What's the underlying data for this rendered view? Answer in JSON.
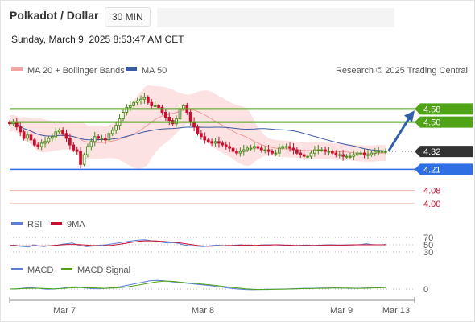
{
  "header": {
    "title": "Polkadot / Dollar",
    "timeframe": "30 MIN",
    "datetime": "Sunday, March 9, 2025 8:53:47 AM CET"
  },
  "legend": {
    "ma20": "MA 20 + Bollinger Bands",
    "ma50": "MA 50",
    "credit": "Research © 2025 Trading Central"
  },
  "colors": {
    "up_candle": "#4b8a1a",
    "down_candle": "#c8102e",
    "resistance": "#4ea414",
    "support": "#2f6fe4",
    "lower_target": "#c8102e",
    "current_price": "#333333",
    "bollinger_fill": "#fbd5d5",
    "ma50": "#3b5aa5",
    "arrow": "#2f5fa8"
  },
  "chart_data": {
    "type": "candlestick",
    "price_ylim": [
      3.95,
      4.75
    ],
    "x_ticks": [
      "Mar 7",
      "Mar 8",
      "Mar 9",
      "Mar 13"
    ],
    "levels": [
      {
        "value": "4.58",
        "role": "resistance"
      },
      {
        "value": "4.50",
        "role": "resistance"
      },
      {
        "value": "4.32",
        "role": "current"
      },
      {
        "value": "4.21",
        "role": "support"
      },
      {
        "value": "4.08",
        "role": "lower"
      },
      {
        "value": "4.00",
        "role": "lower"
      }
    ],
    "close_series": [
      4.49,
      4.5,
      4.47,
      4.44,
      4.4,
      4.42,
      4.39,
      4.36,
      4.35,
      4.37,
      4.38,
      4.4,
      4.41,
      4.44,
      4.45,
      4.43,
      4.4,
      4.36,
      4.33,
      4.32,
      4.24,
      4.3,
      4.35,
      4.38,
      4.41,
      4.4,
      4.4,
      4.39,
      4.43,
      4.45,
      4.48,
      4.52,
      4.56,
      4.59,
      4.6,
      4.62,
      4.63,
      4.64,
      4.65,
      4.62,
      4.6,
      4.6,
      4.59,
      4.56,
      4.53,
      4.51,
      4.49,
      4.52,
      4.58,
      4.6,
      4.56,
      4.5,
      4.47,
      4.43,
      4.41,
      4.39,
      4.38,
      4.37,
      4.38,
      4.37,
      4.36,
      4.35,
      4.34,
      4.32,
      4.31,
      4.32,
      4.33,
      4.34,
      4.34,
      4.35,
      4.34,
      4.33,
      4.33,
      4.32,
      4.31,
      4.31,
      4.34,
      4.35,
      4.35,
      4.34,
      4.33,
      4.31,
      4.3,
      4.29,
      4.29,
      4.31,
      4.33,
      4.33,
      4.33,
      4.32,
      4.32,
      4.31,
      4.3,
      4.3,
      4.29,
      4.29,
      4.29,
      4.3,
      4.31,
      4.31,
      4.3,
      4.3,
      4.31,
      4.32,
      4.32,
      4.32,
      4.32
    ],
    "projection": {
      "from": 4.32,
      "to": 4.58
    },
    "rsi": {
      "legend": [
        "RSI",
        "9MA"
      ],
      "levels": [
        "70",
        "50",
        "30"
      ],
      "series": [
        48,
        49,
        46,
        45,
        44,
        50,
        47,
        45,
        47,
        48,
        49,
        52,
        53,
        55,
        50,
        47,
        45,
        46,
        48,
        49,
        50,
        52,
        54,
        56,
        58,
        60,
        62,
        63,
        64,
        62,
        60,
        58,
        56,
        55,
        56,
        54,
        50,
        48,
        47,
        46,
        45,
        46,
        48,
        49,
        48,
        47,
        48,
        49,
        50,
        48,
        47,
        48,
        49,
        50,
        50,
        50,
        49,
        49,
        48,
        48,
        48,
        49,
        49,
        48,
        49,
        49,
        50,
        50,
        49,
        49,
        50,
        49,
        50,
        51,
        53,
        51,
        50,
        50,
        51
      ],
      "ma9": [
        48,
        48,
        47,
        47,
        47,
        47,
        47,
        47,
        47,
        48,
        49,
        50,
        51,
        51,
        51,
        50,
        49,
        48,
        48,
        47,
        48,
        48,
        50,
        52,
        54,
        56,
        58,
        60,
        61,
        61,
        61,
        60,
        59,
        58,
        57,
        56,
        54,
        52,
        50,
        48,
        47,
        46,
        46,
        47,
        47,
        48,
        48,
        48,
        49,
        49,
        49,
        48,
        49,
        49,
        49,
        50,
        50,
        49,
        49,
        48,
        48,
        48,
        48,
        48,
        48,
        49,
        49,
        49,
        49,
        49,
        49,
        50,
        50,
        50,
        50,
        50,
        50,
        50,
        50
      ]
    },
    "macd": {
      "legend": [
        "MACD",
        "MACD Signal"
      ],
      "zero_label": "0",
      "series": [
        0,
        0.1,
        0.4,
        0.6,
        0.3,
        -0.1,
        0.0,
        0.3,
        0.8,
        0.9,
        0.5,
        0.2,
        0.1,
        0.3,
        0.6,
        1.0,
        1.6,
        2.2,
        2.8,
        3.4,
        3.6,
        3.4,
        3.0,
        2.6,
        2.4,
        2.1,
        1.8,
        1.5,
        1.1,
        0.7,
        0.3,
        0.0,
        -0.2,
        -0.3,
        -0.2,
        -0.1,
        -0.1,
        0.0,
        0.1,
        0.2,
        0.3,
        0.3,
        0.4,
        0.4,
        0.5,
        0.4,
        0.3,
        0.3,
        0.4,
        0.5,
        0.6,
        0.7
      ],
      "signal": [
        0,
        0.1,
        0.2,
        0.3,
        0.3,
        0.2,
        0.1,
        0.2,
        0.4,
        0.6,
        0.6,
        0.5,
        0.4,
        0.3,
        0.4,
        0.6,
        0.9,
        1.4,
        1.9,
        2.5,
        3.0,
        3.3,
        3.2,
        2.9,
        2.6,
        2.4,
        2.1,
        1.8,
        1.5,
        1.1,
        0.7,
        0.4,
        0.1,
        -0.1,
        -0.2,
        -0.2,
        -0.1,
        -0.1,
        0.0,
        0.1,
        0.2,
        0.2,
        0.3,
        0.3,
        0.4,
        0.4,
        0.4,
        0.3,
        0.3,
        0.4,
        0.5,
        0.6
      ]
    }
  }
}
